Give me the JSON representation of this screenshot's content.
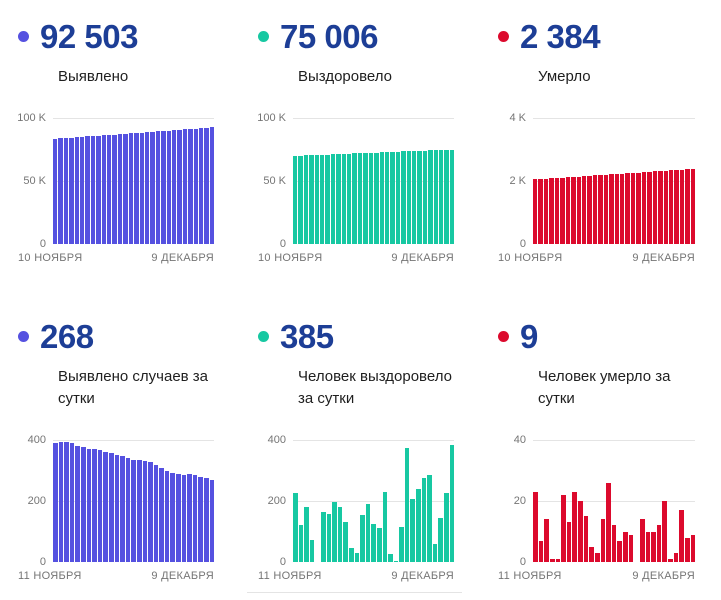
{
  "colors": {
    "headline_text": "#1d3e96",
    "label_text": "#1f1f1f",
    "axis_text": "#757575",
    "gridline": "#e4e4e4",
    "background": "#ffffff",
    "accent_blue": "#5551e0",
    "accent_teal": "#17c8a2",
    "accent_red": "#dc0a2d"
  },
  "panels": [
    {
      "value": "92 503",
      "label": "Выявлено"
    },
    {
      "value": "75 006",
      "label": "Выздоровело"
    },
    {
      "value": "2 384",
      "label": "Умерло"
    },
    {
      "value": "268",
      "label": "Выявлено случаев за сутки"
    },
    {
      "value": "385",
      "label": "Человек выздоровело за сутки"
    },
    {
      "value": "9",
      "label": "Человек умерло за сутки"
    }
  ],
  "chart_data": [
    {
      "type": "bar",
      "title": "Выявлено (всего)",
      "color": "#5551e0",
      "x_start": "10 НОЯБРЯ",
      "x_end": "9 ДЕКАБРЯ",
      "ylim": [
        0,
        100000
      ],
      "yticks": [
        "100 K",
        "50 K",
        "0"
      ],
      "grid": true,
      "values": [
        83500,
        83810,
        84121,
        84431,
        84742,
        85052,
        85363,
        85673,
        85983,
        86294,
        86604,
        86915,
        87225,
        87536,
        87846,
        88156,
        88467,
        88777,
        89088,
        89398,
        89709,
        90019,
        90329,
        90640,
        90950,
        91261,
        91571,
        91882,
        92192,
        92503
      ]
    },
    {
      "type": "bar",
      "title": "Выздоровело (всего)",
      "color": "#17c8a2",
      "x_start": "10 НОЯБРЯ",
      "x_end": "9 ДЕКАБРЯ",
      "ylim": [
        0,
        100000
      ],
      "yticks": [
        "100 K",
        "50 K",
        "0"
      ],
      "grid": true,
      "values": [
        70000,
        70173,
        70345,
        70518,
        70690,
        70863,
        71035,
        71208,
        71380,
        71553,
        71725,
        71898,
        72070,
        72243,
        72415,
        72588,
        72760,
        72933,
        73105,
        73278,
        73450,
        73623,
        73795,
        73968,
        74140,
        74313,
        74485,
        74658,
        74830,
        75006
      ]
    },
    {
      "type": "bar",
      "title": "Умерло (всего)",
      "color": "#dc0a2d",
      "x_start": "10 НОЯБРЯ",
      "x_end": "9 ДЕКАБРЯ",
      "ylim": [
        0,
        4000
      ],
      "yticks": [
        "4 K",
        "2 K",
        "0"
      ],
      "grid": true,
      "values": [
        2050,
        2062,
        2073,
        2085,
        2096,
        2108,
        2119,
        2131,
        2142,
        2154,
        2165,
        2177,
        2188,
        2200,
        2211,
        2223,
        2234,
        2246,
        2257,
        2269,
        2280,
        2292,
        2303,
        2315,
        2326,
        2338,
        2349,
        2361,
        2372,
        2384
      ]
    },
    {
      "type": "bar",
      "title": "Выявлено случаев за сутки",
      "color": "#5551e0",
      "x_start": "11 НОЯБРЯ",
      "x_end": "9 ДЕКАБРЯ",
      "ylim": [
        0,
        400
      ],
      "yticks": [
        "400",
        "200",
        "0"
      ],
      "grid": true,
      "values": [
        389,
        392,
        394,
        390,
        382,
        376,
        372,
        369,
        366,
        362,
        358,
        352,
        347,
        341,
        336,
        333,
        331,
        327,
        319,
        308,
        297,
        291,
        288,
        285,
        290,
        285,
        280,
        276,
        268
      ]
    },
    {
      "type": "bar",
      "title": "Человек выздоровело за сутки",
      "color": "#17c8a2",
      "x_start": "11 НОЯБРЯ",
      "x_end": "9 ДЕКАБРЯ",
      "ylim": [
        0,
        400
      ],
      "yticks": [
        "400",
        "200",
        "0"
      ],
      "grid": true,
      "values": [
        225,
        120,
        180,
        73,
        0,
        163,
        158,
        196,
        181,
        130,
        45,
        30,
        155,
        190,
        126,
        111,
        230,
        25,
        2,
        115,
        375,
        205,
        240,
        275,
        285,
        60,
        145,
        225,
        385
      ]
    },
    {
      "type": "bar",
      "title": "Человек умерло за сутки",
      "color": "#dc0a2d",
      "x_start": "11 НОЯБРЯ",
      "x_end": "9 ДЕКАБРЯ",
      "ylim": [
        0,
        40
      ],
      "yticks": [
        "40",
        "20",
        "0"
      ],
      "grid": true,
      "values": [
        23,
        7,
        14,
        1,
        1,
        22,
        13,
        23,
        20,
        15,
        5,
        3,
        14,
        26,
        12,
        7,
        10,
        9,
        0,
        14,
        10,
        10,
        12,
        20,
        1,
        3,
        17,
        8,
        9
      ]
    }
  ]
}
